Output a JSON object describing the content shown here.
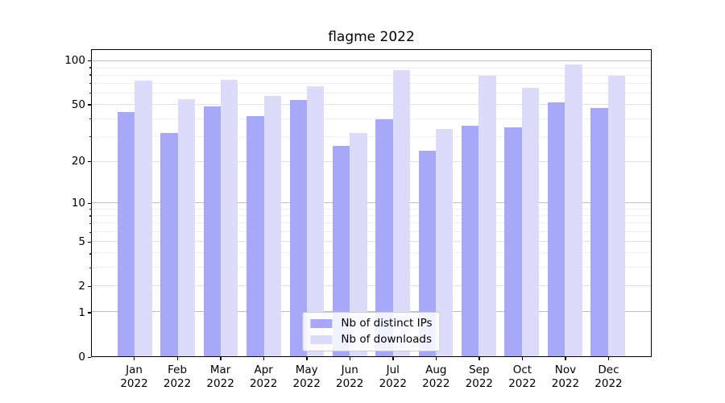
{
  "chart_data": {
    "type": "bar",
    "title": "flagme 2022",
    "categories": [
      "Jan 2022",
      "Feb 2022",
      "Mar 2022",
      "Apr 2022",
      "May 2022",
      "Jun 2022",
      "Jul 2022",
      "Aug 2022",
      "Sep 2022",
      "Oct 2022",
      "Nov 2022",
      "Dec 2022"
    ],
    "x_tick_line1": [
      "Jan",
      "Feb",
      "Mar",
      "Apr",
      "May",
      "Jun",
      "Jul",
      "Aug",
      "Sep",
      "Oct",
      "Nov",
      "Dec"
    ],
    "x_tick_line2": [
      "2022",
      "2022",
      "2022",
      "2022",
      "2022",
      "2022",
      "2022",
      "2022",
      "2022",
      "2022",
      "2022",
      "2022"
    ],
    "series": [
      {
        "name": "Nb of distinct IPs",
        "color": "#a8a8f8",
        "values": [
          45,
          32,
          49,
          42,
          54,
          26,
          40,
          24,
          36,
          35,
          52,
          48
        ]
      },
      {
        "name": "Nb of downloads",
        "color": "#dcdcfa",
        "values": [
          74,
          55,
          75,
          58,
          68,
          32,
          87,
          34,
          80,
          66,
          96,
          80
        ]
      }
    ],
    "yscale": "log1p",
    "ylim": [
      0,
      120
    ],
    "y_ticks": [
      0,
      1,
      2,
      5,
      10,
      20,
      50,
      100
    ],
    "y_tick_labels": [
      "0",
      "1",
      "2",
      "5",
      "10",
      "20",
      "50",
      "100"
    ],
    "y_decade_ticks": [
      1,
      10,
      100
    ],
    "y_minor_ticks": [
      3,
      4,
      6,
      7,
      8,
      9,
      30,
      40,
      60,
      70,
      80,
      90
    ],
    "xlabel": "",
    "ylabel": "",
    "grid": true,
    "legend_position": "lower center",
    "background_color": "#ffffff",
    "axis_color": "#000000"
  }
}
